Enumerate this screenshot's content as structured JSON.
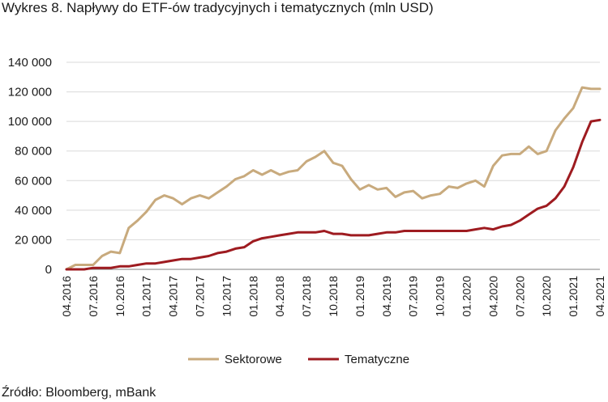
{
  "title": "Wykres 8. Napływy do ETF-ów tradycyjnych i tematycznych (mln USD)",
  "source": "Źródło: Bloomberg, mBank",
  "chart_data": {
    "type": "line",
    "title": "Wykres 8. Napływy do ETF-ów tradycyjnych i tematycznych (mln USD)",
    "xlabel": "",
    "ylabel": "",
    "ylim": [
      0,
      140000
    ],
    "y_ticks": [
      "0",
      "20 000",
      "40 000",
      "60 000",
      "80 000",
      "100 000",
      "120 000",
      "140 000"
    ],
    "y_tick_values": [
      0,
      20000,
      40000,
      60000,
      80000,
      100000,
      120000,
      140000
    ],
    "x_ticks": [
      "04.2016",
      "07.2016",
      "10.2016",
      "01.2017",
      "04.2017",
      "07.2017",
      "10.2017",
      "01.2018",
      "04.2018",
      "07.2018",
      "10.2018",
      "01.2019",
      "04.2019",
      "07.2019",
      "10.2019",
      "01.2020",
      "04.2020",
      "07.2020",
      "10.2020",
      "01.2021",
      "04.2021"
    ],
    "grid": "horizontal",
    "legend_position": "bottom",
    "x": [
      "04.2016",
      "05.2016",
      "06.2016",
      "07.2016",
      "08.2016",
      "09.2016",
      "10.2016",
      "11.2016",
      "12.2016",
      "01.2017",
      "02.2017",
      "03.2017",
      "04.2017",
      "05.2017",
      "06.2017",
      "07.2017",
      "08.2017",
      "09.2017",
      "10.2017",
      "11.2017",
      "12.2017",
      "01.2018",
      "02.2018",
      "03.2018",
      "04.2018",
      "05.2018",
      "06.2018",
      "07.2018",
      "08.2018",
      "09.2018",
      "10.2018",
      "11.2018",
      "12.2018",
      "01.2019",
      "02.2019",
      "03.2019",
      "04.2019",
      "05.2019",
      "06.2019",
      "07.2019",
      "08.2019",
      "09.2019",
      "10.2019",
      "11.2019",
      "12.2019",
      "01.2020",
      "02.2020",
      "03.2020",
      "04.2020",
      "05.2020",
      "06.2020",
      "07.2020",
      "08.2020",
      "09.2020",
      "10.2020",
      "11.2020",
      "12.2020",
      "01.2021",
      "02.2021",
      "03.2021",
      "04.2021"
    ],
    "series": [
      {
        "name": "Sektorowe",
        "color": "#c8aa7d",
        "values": [
          0,
          3000,
          3000,
          3000,
          9000,
          12000,
          11000,
          28000,
          33000,
          39000,
          47000,
          50000,
          48000,
          44000,
          48000,
          50000,
          48000,
          52000,
          56000,
          61000,
          63000,
          67000,
          64000,
          67000,
          64000,
          66000,
          67000,
          73000,
          76000,
          80000,
          72000,
          70000,
          61000,
          54000,
          57000,
          54000,
          55000,
          49000,
          52000,
          53000,
          48000,
          50000,
          51000,
          56000,
          55000,
          58000,
          60000,
          56000,
          70000,
          77000,
          78000,
          78000,
          83000,
          78000,
          80000,
          94000,
          102000,
          109000,
          123000,
          122000,
          122000
        ]
      },
      {
        "name": "Tematyczne",
        "color": "#9e1b20",
        "values": [
          0,
          0,
          0,
          1000,
          1000,
          1000,
          2000,
          2000,
          3000,
          4000,
          4000,
          5000,
          6000,
          7000,
          7000,
          8000,
          9000,
          11000,
          12000,
          14000,
          15000,
          19000,
          21000,
          22000,
          23000,
          24000,
          25000,
          25000,
          25000,
          26000,
          24000,
          24000,
          23000,
          23000,
          23000,
          24000,
          25000,
          25000,
          26000,
          26000,
          26000,
          26000,
          26000,
          26000,
          26000,
          26000,
          27000,
          28000,
          27000,
          29000,
          30000,
          33000,
          37000,
          41000,
          43000,
          48000,
          56000,
          69000,
          86000,
          100000,
          101000
        ]
      }
    ]
  }
}
